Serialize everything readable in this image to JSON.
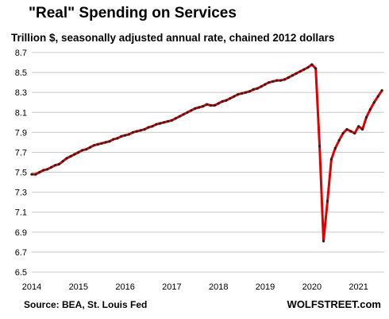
{
  "chart_data": {
    "type": "line",
    "title": "\"Real\" Spending on Services",
    "subtitle": "Trillion $, seasonally adjusted annual rate, chained 2012 dollars",
    "xlabel": "",
    "ylabel": "",
    "ylim": [
      6.5,
      8.7
    ],
    "yticks": [
      "6.5",
      "6.7",
      "6.9",
      "7.1",
      "7.3",
      "7.5",
      "7.7",
      "7.9",
      "8.1",
      "8.3",
      "8.5",
      "8.7"
    ],
    "xlim": [
      "2014-01",
      "2021-07"
    ],
    "xticks": [
      "2014",
      "2015",
      "2016",
      "2017",
      "2018",
      "2019",
      "2020",
      "2021"
    ],
    "grid": "horizontal",
    "line_color": "#e00000",
    "marker_color": "#222222",
    "series": [
      {
        "x": [
          "2014-01",
          "2014-02",
          "2014-03",
          "2014-04",
          "2014-05",
          "2014-06",
          "2014-07",
          "2014-08",
          "2014-09",
          "2014-10",
          "2014-11",
          "2014-12",
          "2015-01",
          "2015-02",
          "2015-03",
          "2015-04",
          "2015-05",
          "2015-06",
          "2015-07",
          "2015-08",
          "2015-09",
          "2015-10",
          "2015-11",
          "2015-12",
          "2016-01",
          "2016-02",
          "2016-03",
          "2016-04",
          "2016-05",
          "2016-06",
          "2016-07",
          "2016-08",
          "2016-09",
          "2016-10",
          "2016-11",
          "2016-12",
          "2017-01",
          "2017-02",
          "2017-03",
          "2017-04",
          "2017-05",
          "2017-06",
          "2017-07",
          "2017-08",
          "2017-09",
          "2017-10",
          "2017-11",
          "2017-12",
          "2018-01",
          "2018-02",
          "2018-03",
          "2018-04",
          "2018-05",
          "2018-06",
          "2018-07",
          "2018-08",
          "2018-09",
          "2018-10",
          "2018-11",
          "2018-12",
          "2019-01",
          "2019-02",
          "2019-03",
          "2019-04",
          "2019-05",
          "2019-06",
          "2019-07",
          "2019-08",
          "2019-09",
          "2019-10",
          "2019-11",
          "2019-12",
          "2020-01",
          "2020-02",
          "2020-03",
          "2020-04",
          "2020-05",
          "2020-06",
          "2020-07",
          "2020-08",
          "2020-09",
          "2020-10",
          "2020-11",
          "2020-12",
          "2021-01",
          "2021-02",
          "2021-03",
          "2021-04",
          "2021-05",
          "2021-06",
          "2021-07"
        ],
        "values": [
          7.48,
          7.48,
          7.5,
          7.52,
          7.53,
          7.55,
          7.57,
          7.58,
          7.61,
          7.64,
          7.66,
          7.68,
          7.7,
          7.72,
          7.73,
          7.75,
          7.77,
          7.78,
          7.79,
          7.8,
          7.81,
          7.83,
          7.84,
          7.86,
          7.87,
          7.88,
          7.9,
          7.91,
          7.92,
          7.93,
          7.95,
          7.96,
          7.98,
          7.99,
          8.0,
          8.01,
          8.02,
          8.04,
          8.06,
          8.08,
          8.1,
          8.12,
          8.14,
          8.15,
          8.16,
          8.18,
          8.17,
          8.17,
          8.19,
          8.21,
          8.22,
          8.24,
          8.26,
          8.28,
          8.29,
          8.3,
          8.31,
          8.33,
          8.34,
          8.36,
          8.38,
          8.4,
          8.41,
          8.42,
          8.42,
          8.43,
          8.45,
          8.47,
          8.49,
          8.51,
          8.53,
          8.55,
          8.58,
          8.54,
          7.76,
          6.81,
          7.21,
          7.63,
          7.74,
          7.82,
          7.89,
          7.93,
          7.91,
          7.89,
          7.96,
          7.93,
          8.05,
          8.13,
          8.2,
          8.26,
          8.32
        ]
      }
    ]
  },
  "footer": {
    "source": "Source: BEA, St. Louis Fed",
    "brand": "WOLFSTREET.com"
  }
}
